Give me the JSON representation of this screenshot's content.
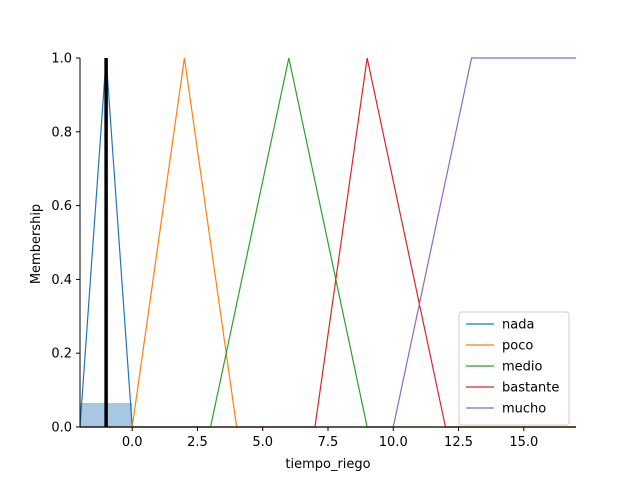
{
  "chart_data": {
    "type": "line",
    "title": "",
    "xlabel": "tiempo_riego",
    "ylabel": "Membership",
    "xlim": [
      -2,
      17
    ],
    "ylim": [
      0,
      1.0
    ],
    "x_ticks": [
      0.0,
      2.5,
      5.0,
      7.5,
      10.0,
      12.5,
      15.0
    ],
    "x_tick_labels": [
      "0.0",
      "2.5",
      "5.0",
      "7.5",
      "10.0",
      "12.5",
      "15.0"
    ],
    "y_ticks": [
      0.0,
      0.2,
      0.4,
      0.6,
      0.8,
      1.0
    ],
    "y_tick_labels": [
      "0.0",
      "0.2",
      "0.4",
      "0.6",
      "0.8",
      "1.0"
    ],
    "legend_position": "bottom-right",
    "series": [
      {
        "name": "nada",
        "color": "#1f77b4",
        "x": [
          -2,
          -1,
          0,
          17
        ],
        "y": [
          0,
          1,
          0,
          0
        ]
      },
      {
        "name": "poco",
        "color": "#ff7f0e",
        "x": [
          -2,
          0,
          2,
          4,
          17
        ],
        "y": [
          0,
          0,
          1,
          0,
          0
        ]
      },
      {
        "name": "medio",
        "color": "#2ca02c",
        "x": [
          -2,
          3,
          6,
          9,
          17
        ],
        "y": [
          0,
          0,
          1,
          0,
          0
        ]
      },
      {
        "name": "bastante",
        "color": "#d62728",
        "x": [
          -2,
          7,
          9,
          12,
          17
        ],
        "y": [
          0,
          0,
          1,
          0,
          0
        ]
      },
      {
        "name": "mucho",
        "color": "#9467bd",
        "x": [
          -2,
          10,
          13,
          17
        ],
        "y": [
          0,
          0,
          1,
          1
        ]
      }
    ],
    "activation": {
      "color": "#a6c8e3",
      "x": [
        -2,
        0
      ],
      "y": 0.065
    },
    "crisp_value": {
      "x": -1,
      "color": "#000000"
    }
  }
}
